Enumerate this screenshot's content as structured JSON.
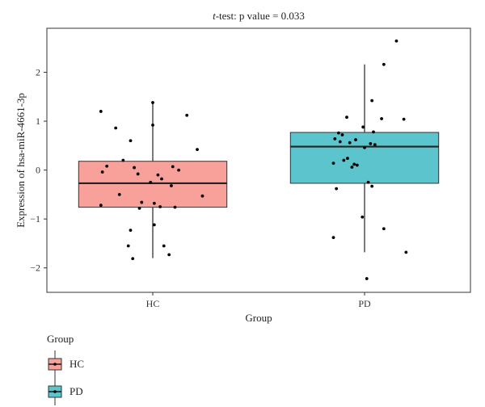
{
  "chart_data": {
    "type": "box",
    "title_italic": "t",
    "title_rest": "-test: p value = 0.033",
    "xlabel": "Group",
    "ylabel": "Expression of hsa-miR-4661-3p",
    "ylim": [
      -2.5,
      2.9
    ],
    "yticks": [
      -2,
      -1,
      0,
      1,
      2
    ],
    "categories": [
      "HC",
      "PD"
    ],
    "legend": {
      "title": "Group",
      "position": "bottom-left"
    },
    "series": [
      {
        "name": "HC",
        "color": "#F8A09A",
        "box": {
          "q1": -0.76,
          "median": -0.27,
          "q3": 0.18,
          "whisker_low": -1.8,
          "whisker_high": 1.38
        },
        "points": [
          [
            -0.7,
            1.2
          ],
          [
            0.0,
            1.38
          ],
          [
            0.46,
            1.12
          ],
          [
            -0.5,
            0.86
          ],
          [
            0.0,
            0.92
          ],
          [
            -0.3,
            0.6
          ],
          [
            0.6,
            0.42
          ],
          [
            -0.4,
            0.2
          ],
          [
            -0.25,
            0.05
          ],
          [
            0.27,
            0.07
          ],
          [
            -0.62,
            0.08
          ],
          [
            0.35,
            0.0
          ],
          [
            -0.68,
            -0.04
          ],
          [
            -0.2,
            -0.08
          ],
          [
            0.07,
            -0.1
          ],
          [
            0.12,
            -0.18
          ],
          [
            -0.03,
            -0.25
          ],
          [
            0.25,
            -0.32
          ],
          [
            -0.45,
            -0.5
          ],
          [
            0.67,
            -0.53
          ],
          [
            -0.15,
            -0.66
          ],
          [
            0.02,
            -0.68
          ],
          [
            -0.7,
            -0.72
          ],
          [
            0.3,
            -0.76
          ],
          [
            -0.18,
            -0.78
          ],
          [
            0.1,
            -0.75
          ],
          [
            0.02,
            -1.12
          ],
          [
            -0.3,
            -1.23
          ],
          [
            -0.33,
            -1.55
          ],
          [
            0.15,
            -1.55
          ],
          [
            0.22,
            -1.73
          ],
          [
            -0.27,
            -1.81
          ]
        ]
      },
      {
        "name": "PD",
        "color": "#5BC4CC",
        "box": {
          "q1": -0.27,
          "median": 0.48,
          "q3": 0.77,
          "whisker_low": -1.68,
          "whisker_high": 2.16
        },
        "points": [
          [
            0.43,
            2.64
          ],
          [
            0.26,
            2.16
          ],
          [
            0.1,
            1.42
          ],
          [
            -0.24,
            1.08
          ],
          [
            0.23,
            1.05
          ],
          [
            0.53,
            1.04
          ],
          [
            -0.02,
            0.88
          ],
          [
            0.12,
            0.78
          ],
          [
            -0.35,
            0.76
          ],
          [
            -0.3,
            0.72
          ],
          [
            -0.4,
            0.64
          ],
          [
            -0.12,
            0.62
          ],
          [
            -0.33,
            0.58
          ],
          [
            -0.2,
            0.56
          ],
          [
            0.08,
            0.54
          ],
          [
            0.14,
            0.52
          ],
          [
            0.0,
            0.46
          ],
          [
            -0.42,
            0.14
          ],
          [
            -0.23,
            0.24
          ],
          [
            -0.28,
            0.2
          ],
          [
            -0.14,
            0.12
          ],
          [
            -0.1,
            0.1
          ],
          [
            -0.17,
            0.06
          ],
          [
            0.05,
            -0.25
          ],
          [
            0.1,
            -0.33
          ],
          [
            -0.38,
            -0.38
          ],
          [
            -0.03,
            -0.96
          ],
          [
            0.26,
            -1.2
          ],
          [
            -0.42,
            -1.38
          ],
          [
            0.56,
            -1.68
          ],
          [
            0.03,
            -2.22
          ]
        ]
      }
    ]
  }
}
